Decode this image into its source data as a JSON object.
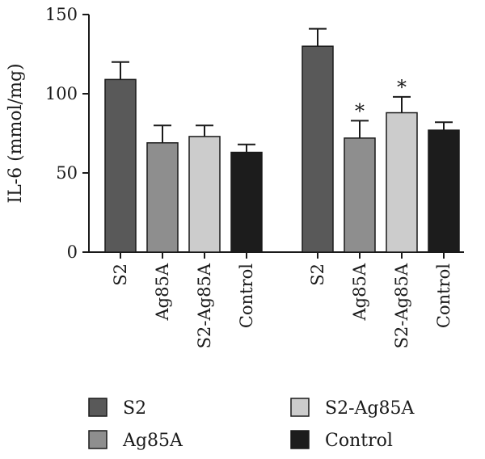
{
  "chart_data": {
    "type": "bar",
    "title": "",
    "ylabel": "IL-6 (mmol/mg)",
    "xlabel": "",
    "ylim": [
      0,
      150
    ],
    "yticks": [
      0,
      50,
      100,
      150
    ],
    "grid": false,
    "legend_position": "bottom",
    "groups": [
      {
        "categories": [
          "S2",
          "Ag85A",
          "S2-Ag85A",
          "Control"
        ],
        "values": [
          109,
          69,
          73,
          63
        ],
        "errors": [
          11,
          11,
          7,
          5
        ],
        "annotations": [
          "",
          "",
          "",
          ""
        ]
      },
      {
        "categories": [
          "S2",
          "Ag85A",
          "S2-Ag85A",
          "Control"
        ],
        "values": [
          130,
          72,
          88,
          77
        ],
        "errors": [
          11,
          11,
          10,
          5
        ],
        "annotations": [
          "",
          "*",
          "*",
          ""
        ]
      }
    ],
    "legend": [
      {
        "name": "S2",
        "color": "#595959"
      },
      {
        "name": "Ag85A",
        "color": "#8e8e8e"
      },
      {
        "name": "S2-Ag85A",
        "color": "#cccccc"
      },
      {
        "name": "Control",
        "color": "#1c1c1c"
      }
    ]
  }
}
